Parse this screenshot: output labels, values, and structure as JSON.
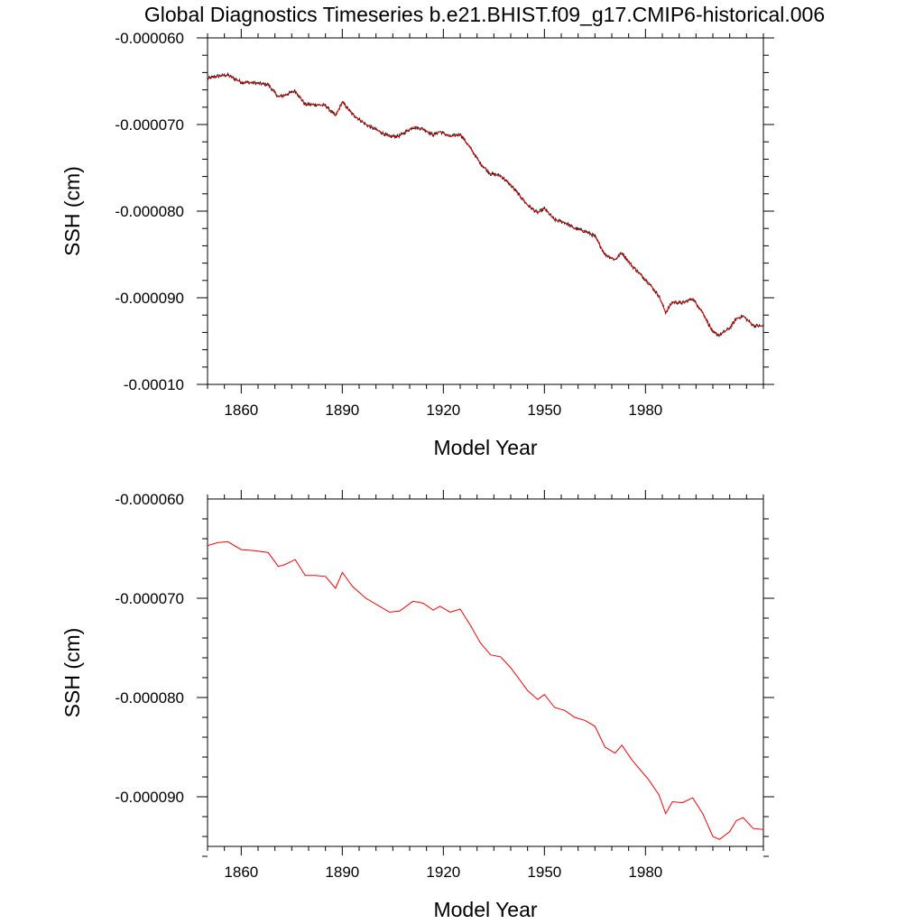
{
  "figure_title": "Global Diagnostics Timeseries b.e21.BHIST.f09_g17.CMIP6-historical.006",
  "colors": {
    "raw_line": "#000000",
    "smooth_line": "#ff0000",
    "axes": "#000000"
  },
  "chart_data": [
    {
      "type": "line",
      "title": "Global Diagnostics Timeseries b.e21.BHIST.f09_g17.CMIP6-historical.006",
      "xlabel": "Model Year",
      "ylabel": "SSH (cm)",
      "xlim": [
        1850,
        2015
      ],
      "ylim": [
        -0.0001,
        -6e-05
      ],
      "xticks": [
        1860,
        1890,
        1920,
        1950,
        1980
      ],
      "xtick_labels": [
        "1860",
        "1890",
        "1920",
        "1950",
        "1980"
      ],
      "yticks": [
        -6e-05,
        -7e-05,
        -8e-05,
        -9e-05,
        -0.0001
      ],
      "ytick_labels": [
        "-0.000060",
        "-0.000070",
        "-0.000080",
        "-0.000090",
        "-0.00010"
      ],
      "grid": false,
      "legend": "none",
      "series": [
        {
          "style": "monthly (black, thin)",
          "color": "#000000",
          "x": [
            1850,
            1853,
            1856,
            1860,
            1864,
            1868,
            1871,
            1873,
            1876,
            1879,
            1882,
            1885,
            1888,
            1890,
            1893,
            1897,
            1900,
            1904,
            1907,
            1911,
            1914,
            1917,
            1919,
            1922,
            1925,
            1928,
            1931,
            1934,
            1937,
            1940,
            1942,
            1945,
            1948,
            1950,
            1953,
            1956,
            1959,
            1962,
            1965,
            1968,
            1971,
            1973,
            1976,
            1979,
            1981,
            1984,
            1986,
            1988,
            1991,
            1994,
            1997,
            2000,
            2002,
            2005,
            2007,
            2009,
            2012,
            2015
          ],
          "y": [
            -6.47e-05,
            -6.44e-05,
            -6.43e-05,
            -6.51e-05,
            -6.52e-05,
            -6.54e-05,
            -6.68e-05,
            -6.66e-05,
            -6.61e-05,
            -6.77e-05,
            -6.77e-05,
            -6.78e-05,
            -6.9e-05,
            -6.74e-05,
            -6.88e-05,
            -7e-05,
            -7.06e-05,
            -7.14e-05,
            -7.13e-05,
            -7.03e-05,
            -7.05e-05,
            -7.12e-05,
            -7.08e-05,
            -7.14e-05,
            -7.11e-05,
            -7.27e-05,
            -7.45e-05,
            -7.57e-05,
            -7.59e-05,
            -7.7e-05,
            -7.79e-05,
            -7.93e-05,
            -8.02e-05,
            -7.97e-05,
            -8.1e-05,
            -8.13e-05,
            -8.2e-05,
            -8.23e-05,
            -8.29e-05,
            -8.5e-05,
            -8.56e-05,
            -8.48e-05,
            -8.63e-05,
            -8.75e-05,
            -8.83e-05,
            -8.98e-05,
            -9.17e-05,
            -9.05e-05,
            -9.06e-05,
            -9.01e-05,
            -9.17e-05,
            -9.4e-05,
            -9.43e-05,
            -9.35e-05,
            -9.24e-05,
            -9.21e-05,
            -9.32e-05,
            -9.33e-05
          ]
        },
        {
          "style": "smoothed (red)",
          "color": "#ff0000",
          "x": [
            1850,
            1853,
            1856,
            1860,
            1864,
            1868,
            1871,
            1873,
            1876,
            1879,
            1882,
            1885,
            1888,
            1890,
            1893,
            1897,
            1900,
            1904,
            1907,
            1911,
            1914,
            1917,
            1919,
            1922,
            1925,
            1928,
            1931,
            1934,
            1937,
            1940,
            1942,
            1945,
            1948,
            1950,
            1953,
            1956,
            1959,
            1962,
            1965,
            1968,
            1971,
            1973,
            1976,
            1979,
            1981,
            1984,
            1986,
            1988,
            1991,
            1994,
            1997,
            2000,
            2002,
            2005,
            2007,
            2009,
            2012,
            2015
          ],
          "y": [
            -6.47e-05,
            -6.44e-05,
            -6.43e-05,
            -6.51e-05,
            -6.52e-05,
            -6.54e-05,
            -6.68e-05,
            -6.66e-05,
            -6.61e-05,
            -6.77e-05,
            -6.77e-05,
            -6.78e-05,
            -6.9e-05,
            -6.74e-05,
            -6.88e-05,
            -7e-05,
            -7.06e-05,
            -7.14e-05,
            -7.13e-05,
            -7.03e-05,
            -7.05e-05,
            -7.12e-05,
            -7.08e-05,
            -7.14e-05,
            -7.11e-05,
            -7.27e-05,
            -7.45e-05,
            -7.57e-05,
            -7.59e-05,
            -7.7e-05,
            -7.79e-05,
            -7.93e-05,
            -8.02e-05,
            -7.97e-05,
            -8.1e-05,
            -8.13e-05,
            -8.2e-05,
            -8.23e-05,
            -8.29e-05,
            -8.5e-05,
            -8.56e-05,
            -8.48e-05,
            -8.63e-05,
            -8.75e-05,
            -8.83e-05,
            -8.98e-05,
            -9.17e-05,
            -9.05e-05,
            -9.06e-05,
            -9.01e-05,
            -9.17e-05,
            -9.4e-05,
            -9.43e-05,
            -9.35e-05,
            -9.24e-05,
            -9.21e-05,
            -9.32e-05,
            -9.33e-05
          ]
        }
      ]
    },
    {
      "type": "line",
      "title": "",
      "xlabel": "Model Year",
      "ylabel": "SSH (cm)",
      "xlim": [
        1850,
        2015
      ],
      "ylim": [
        -9.5e-05,
        -6e-05
      ],
      "xticks": [
        1860,
        1890,
        1920,
        1950,
        1980
      ],
      "xtick_labels": [
        "1860",
        "1890",
        "1920",
        "1950",
        "1980"
      ],
      "yticks": [
        -6e-05,
        -7e-05,
        -8e-05,
        -9e-05
      ],
      "ytick_labels": [
        "-0.000060",
        "-0.000070",
        "-0.000080",
        "-0.000090"
      ],
      "grid": false,
      "legend": "none",
      "series": [
        {
          "style": "smoothed (red)",
          "color": "#ff0000",
          "x": [
            1850,
            1853,
            1856,
            1860,
            1864,
            1868,
            1871,
            1873,
            1876,
            1879,
            1882,
            1885,
            1888,
            1890,
            1893,
            1897,
            1900,
            1904,
            1907,
            1911,
            1914,
            1917,
            1919,
            1922,
            1925,
            1928,
            1931,
            1934,
            1937,
            1940,
            1942,
            1945,
            1948,
            1950,
            1953,
            1956,
            1959,
            1962,
            1965,
            1968,
            1971,
            1973,
            1976,
            1979,
            1981,
            1984,
            1986,
            1988,
            1991,
            1994,
            1997,
            2000,
            2002,
            2005,
            2007,
            2009,
            2012,
            2015
          ],
          "y": [
            -6.47e-05,
            -6.44e-05,
            -6.43e-05,
            -6.51e-05,
            -6.52e-05,
            -6.54e-05,
            -6.68e-05,
            -6.66e-05,
            -6.61e-05,
            -6.77e-05,
            -6.77e-05,
            -6.78e-05,
            -6.9e-05,
            -6.74e-05,
            -6.88e-05,
            -7e-05,
            -7.06e-05,
            -7.14e-05,
            -7.13e-05,
            -7.03e-05,
            -7.05e-05,
            -7.12e-05,
            -7.08e-05,
            -7.14e-05,
            -7.11e-05,
            -7.27e-05,
            -7.45e-05,
            -7.57e-05,
            -7.59e-05,
            -7.7e-05,
            -7.79e-05,
            -7.93e-05,
            -8.02e-05,
            -7.97e-05,
            -8.1e-05,
            -8.13e-05,
            -8.2e-05,
            -8.23e-05,
            -8.29e-05,
            -8.5e-05,
            -8.56e-05,
            -8.48e-05,
            -8.63e-05,
            -8.75e-05,
            -8.83e-05,
            -8.98e-05,
            -9.17e-05,
            -9.05e-05,
            -9.06e-05,
            -9.01e-05,
            -9.17e-05,
            -9.4e-05,
            -9.43e-05,
            -9.35e-05,
            -9.24e-05,
            -9.21e-05,
            -9.32e-05,
            -9.33e-05
          ]
        }
      ]
    }
  ]
}
